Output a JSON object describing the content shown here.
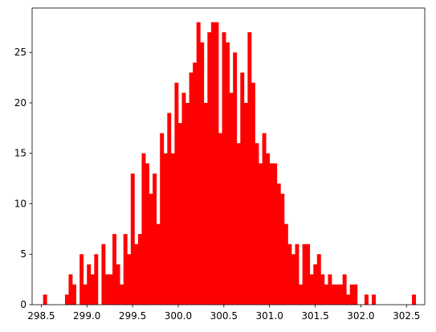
{
  "chart_data": {
    "type": "histogram",
    "title": "",
    "xlabel": "",
    "ylabel": "",
    "bar_color": "#ff0000",
    "xlim": [
      298.4,
      302.7
    ],
    "ylim": [
      0,
      29.4
    ],
    "xticks": [
      298.5,
      299.0,
      299.5,
      300.0,
      300.5,
      301.0,
      301.5,
      302.0,
      302.5
    ],
    "xtick_labels": [
      "298.5",
      "299.0",
      "299.5",
      "300.0",
      "300.5",
      "301.0",
      "301.5",
      "302.0",
      "302.5"
    ],
    "yticks": [
      0,
      5,
      10,
      15,
      20,
      25
    ],
    "ytick_labels": [
      "0",
      "5",
      "10",
      "15",
      "20",
      "25"
    ],
    "bin_start": 298.52,
    "bin_width": 0.04,
    "bin_counts": [
      1,
      0,
      0,
      0,
      0,
      0,
      1,
      3,
      2,
      0,
      5,
      2,
      4,
      3,
      5,
      0,
      6,
      3,
      3,
      7,
      4,
      2,
      7,
      5,
      13,
      6,
      7,
      15,
      14,
      11,
      13,
      8,
      17,
      15,
      19,
      15,
      22,
      18,
      21,
      20,
      23,
      24,
      28,
      26,
      20,
      27,
      28,
      28,
      17,
      27,
      26,
      21,
      25,
      16,
      23,
      20,
      27,
      22,
      16,
      14,
      17,
      15,
      14,
      14,
      12,
      11,
      8,
      6,
      5,
      6,
      2,
      6,
      6,
      3,
      4,
      5,
      3,
      2,
      3,
      2,
      2,
      2,
      3,
      1,
      2,
      2,
      0,
      0,
      1,
      0,
      1,
      0,
      0,
      0,
      0,
      0,
      0,
      0,
      0,
      0,
      0,
      1
    ],
    "grid": false
  }
}
